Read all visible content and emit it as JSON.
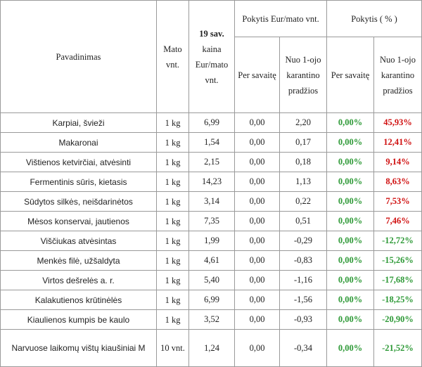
{
  "headers": {
    "name": "Pavadinimas",
    "unit": "Mato vnt.",
    "price": "19 sav.",
    "price_sub": "kaina Eur/mato vnt.",
    "change_eur": "Pokytis Eur/mato vnt.",
    "change_pct": "Pokytis ( % )",
    "per_week": "Per savaitę",
    "from_quarantine": "Nuo 1-ojo karantino pradžios"
  },
  "colors": {
    "positive_change": "#2f9a38",
    "negative_change": "#d01010"
  },
  "rows": [
    {
      "name": "Karpiai, švieži",
      "unit": "1 kg",
      "price": "6,99",
      "week_eur": "0,00",
      "quar_eur": "2,20",
      "week_pct": "0,00%",
      "quar_pct": "45,93%",
      "quar_color": "red"
    },
    {
      "name": "Makaronai",
      "unit": "1 kg",
      "price": "1,54",
      "week_eur": "0,00",
      "quar_eur": "0,17",
      "week_pct": "0,00%",
      "quar_pct": "12,41%",
      "quar_color": "red"
    },
    {
      "name": "Vištienos ketvirčiai, atvėsinti",
      "unit": "1 kg",
      "price": "2,15",
      "week_eur": "0,00",
      "quar_eur": "0,18",
      "week_pct": "0,00%",
      "quar_pct": "9,14%",
      "quar_color": "red"
    },
    {
      "name": "Fermentinis sūris, kietasis",
      "unit": "1 kg",
      "price": "14,23",
      "week_eur": "0,00",
      "quar_eur": "1,13",
      "week_pct": "0,00%",
      "quar_pct": "8,63%",
      "quar_color": "red"
    },
    {
      "name": "Sūdytos silkės, neišdarinėtos",
      "unit": "1 kg",
      "price": "3,14",
      "week_eur": "0,00",
      "quar_eur": "0,22",
      "week_pct": "0,00%",
      "quar_pct": "7,53%",
      "quar_color": "red"
    },
    {
      "name": "Mėsos konservai, jautienos",
      "unit": "1 kg",
      "price": "7,35",
      "week_eur": "0,00",
      "quar_eur": "0,51",
      "week_pct": "0,00%",
      "quar_pct": "7,46%",
      "quar_color": "red"
    },
    {
      "name": "Viščiukas atvėsintas",
      "unit": "1 kg",
      "price": "1,99",
      "week_eur": "0,00",
      "quar_eur": "-0,29",
      "week_pct": "0,00%",
      "quar_pct": "-12,72%",
      "quar_color": "green"
    },
    {
      "name": "Menkės filė, užšaldyta",
      "unit": "1 kg",
      "price": "4,61",
      "week_eur": "0,00",
      "quar_eur": "-0,83",
      "week_pct": "0,00%",
      "quar_pct": "-15,26%",
      "quar_color": "green"
    },
    {
      "name": "Virtos dešrelės a. r.",
      "unit": "1 kg",
      "price": "5,40",
      "week_eur": "0,00",
      "quar_eur": "-1,16",
      "week_pct": "0,00%",
      "quar_pct": "-17,68%",
      "quar_color": "green"
    },
    {
      "name": "Kalakutienos krūtinėlės",
      "unit": "1 kg",
      "price": "6,99",
      "week_eur": "0,00",
      "quar_eur": "-1,56",
      "week_pct": "0,00%",
      "quar_pct": "-18,25%",
      "quar_color": "green"
    },
    {
      "name": "Kiaulienos kumpis be kaulo",
      "unit": "1 kg",
      "price": "3,52",
      "week_eur": "0,00",
      "quar_eur": "-0,93",
      "week_pct": "0,00%",
      "quar_pct": "-20,90%",
      "quar_color": "green"
    },
    {
      "name": "Narvuose laikomų vištų kiaušiniai M",
      "unit": "10 vnt.",
      "price": "1,24",
      "week_eur": "0,00",
      "quar_eur": "-0,34",
      "week_pct": "0,00%",
      "quar_pct": "-21,52%",
      "quar_color": "green",
      "tall": true
    }
  ]
}
